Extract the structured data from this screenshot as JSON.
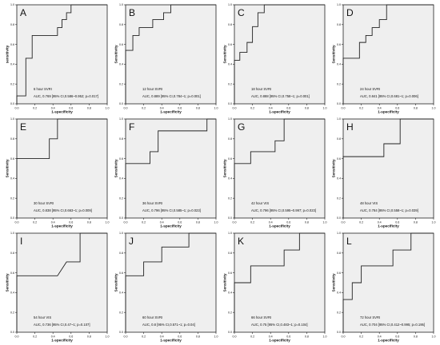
{
  "colors": {
    "plot_bg": "#efefef",
    "frame": "#222222",
    "curve": "#222222",
    "text": "#111111"
  },
  "common": {
    "xlabel": "1-specificity",
    "ylabel": "Sensitivity",
    "ticks": [
      "0.0",
      "0.2",
      "0.4",
      "0.6",
      "0.8",
      "1.0"
    ]
  },
  "chart_data": [
    {
      "type": "line",
      "letter": "A",
      "name": "6 hour SVRI",
      "auc": "AUC, 0.769 [95% CI,0.586~0.952; p=0.017]",
      "xlabel": "1-specificity",
      "ylabel": "sensitivity",
      "xlim": [
        0,
        1
      ],
      "ylim": [
        0,
        1
      ],
      "grid": false,
      "points": [
        [
          0,
          0
        ],
        [
          0,
          0.08
        ],
        [
          0.1,
          0.08
        ],
        [
          0.1,
          0.46
        ],
        [
          0.17,
          0.46
        ],
        [
          0.17,
          0.69
        ],
        [
          0.45,
          0.69
        ],
        [
          0.45,
          0.77
        ],
        [
          0.5,
          0.77
        ],
        [
          0.5,
          0.85
        ],
        [
          0.55,
          0.85
        ],
        [
          0.55,
          0.92
        ],
        [
          0.6,
          0.92
        ],
        [
          0.6,
          1.0
        ],
        [
          1,
          1
        ]
      ]
    },
    {
      "type": "line",
      "letter": "B",
      "name": "12 hour SVRI",
      "auc": "AUC, 0.889 [95% CI,0.784~1; p=0.001]",
      "xlabel": "1-specificity",
      "ylabel": "Sensitivity",
      "xlim": [
        0,
        1
      ],
      "ylim": [
        0,
        1
      ],
      "grid": false,
      "points": [
        [
          0,
          0
        ],
        [
          0,
          0.54
        ],
        [
          0.08,
          0.54
        ],
        [
          0.08,
          0.69
        ],
        [
          0.15,
          0.69
        ],
        [
          0.15,
          0.77
        ],
        [
          0.3,
          0.77
        ],
        [
          0.3,
          0.85
        ],
        [
          0.42,
          0.85
        ],
        [
          0.42,
          0.92
        ],
        [
          0.5,
          0.92
        ],
        [
          0.5,
          1.0
        ],
        [
          1,
          1
        ]
      ]
    },
    {
      "type": "line",
      "letter": "C",
      "name": "18 hour SVRI",
      "auc": "AUC, 0.888 [95% CI,0.758~1; p=0.001]",
      "xlabel": "1-specificity",
      "ylabel": "Sensitivity",
      "xlim": [
        0,
        1
      ],
      "ylim": [
        0,
        1
      ],
      "grid": false,
      "points": [
        [
          0,
          0
        ],
        [
          0,
          0.44
        ],
        [
          0.06,
          0.44
        ],
        [
          0.06,
          0.52
        ],
        [
          0.14,
          0.52
        ],
        [
          0.14,
          0.62
        ],
        [
          0.2,
          0.62
        ],
        [
          0.2,
          0.78
        ],
        [
          0.26,
          0.78
        ],
        [
          0.26,
          0.92
        ],
        [
          0.33,
          0.92
        ],
        [
          0.33,
          1.0
        ],
        [
          1,
          1
        ]
      ]
    },
    {
      "type": "line",
      "letter": "D",
      "name": "24 hour SVRI",
      "auc": "AUC, 0.841 [95% CI,0.681~1; p=0.006]",
      "xlabel": "1-specificity",
      "ylabel": "Sensitivity",
      "xlim": [
        0,
        1
      ],
      "ylim": [
        0,
        1
      ],
      "grid": false,
      "points": [
        [
          0,
          0
        ],
        [
          0,
          0.46
        ],
        [
          0.18,
          0.46
        ],
        [
          0.18,
          0.62
        ],
        [
          0.25,
          0.62
        ],
        [
          0.25,
          0.69
        ],
        [
          0.32,
          0.69
        ],
        [
          0.32,
          0.77
        ],
        [
          0.4,
          0.77
        ],
        [
          0.4,
          0.85
        ],
        [
          0.48,
          0.85
        ],
        [
          0.48,
          1.0
        ],
        [
          1,
          1
        ]
      ]
    },
    {
      "type": "line",
      "letter": "E",
      "name": "30 hour SVRI",
      "auc": "AUC, 0.838 [95% CI,0.663~1; p=0.009]",
      "xlabel": "1-specificity",
      "ylabel": "Sensitivity",
      "xlim": [
        0,
        1
      ],
      "ylim": [
        0,
        1
      ],
      "grid": false,
      "points": [
        [
          0,
          0
        ],
        [
          0,
          0.6
        ],
        [
          0.36,
          0.6
        ],
        [
          0.36,
          0.8
        ],
        [
          0.45,
          0.8
        ],
        [
          0.45,
          1.0
        ],
        [
          1,
          1
        ]
      ]
    },
    {
      "type": "line",
      "letter": "F",
      "name": "36 hour SVRI",
      "auc": "AUC, 0.796 [95% CI,0.585~1; p=0.023]",
      "xlabel": "1-specificity",
      "ylabel": "Sensitivity",
      "xlim": [
        0,
        1
      ],
      "ylim": [
        0,
        1
      ],
      "grid": false,
      "points": [
        [
          0,
          0
        ],
        [
          0,
          0.55
        ],
        [
          0.27,
          0.55
        ],
        [
          0.27,
          0.67
        ],
        [
          0.36,
          0.67
        ],
        [
          0.36,
          0.88
        ],
        [
          0.9,
          0.88
        ],
        [
          0.9,
          1.0
        ],
        [
          1,
          1
        ]
      ]
    },
    {
      "type": "line",
      "letter": "G",
      "name": "42 hour VIS",
      "auc": "AUC, 0.796 [95% CI,0.595~0.997; p=0.023]",
      "xlabel": "1-specificity",
      "ylabel": "Sensitivity",
      "xlim": [
        0,
        1
      ],
      "ylim": [
        0,
        1
      ],
      "grid": false,
      "points": [
        [
          0,
          0
        ],
        [
          0,
          0.55
        ],
        [
          0.18,
          0.55
        ],
        [
          0.18,
          0.67
        ],
        [
          0.45,
          0.67
        ],
        [
          0.45,
          0.78
        ],
        [
          0.55,
          0.78
        ],
        [
          0.55,
          1.0
        ],
        [
          1,
          1
        ]
      ]
    },
    {
      "type": "line",
      "letter": "H",
      "name": "48 hour VIS",
      "auc": "AUC, 0.784 [95% CI,0.558~1; p=0.039]",
      "xlabel": "1-specificity",
      "ylabel": "Sensitivity",
      "xlim": [
        0,
        1
      ],
      "ylim": [
        0,
        1
      ],
      "grid": false,
      "points": [
        [
          0,
          0
        ],
        [
          0,
          0.62
        ],
        [
          0.45,
          0.62
        ],
        [
          0.45,
          0.75
        ],
        [
          0.63,
          0.75
        ],
        [
          0.63,
          1.0
        ],
        [
          1,
          1
        ]
      ]
    },
    {
      "type": "line",
      "letter": "I",
      "name": "54 hour VIS",
      "auc": "AUC, 0.736 [95% CI,0.47~1; p=0.107]",
      "xlabel": "1-specificity",
      "ylabel": "Sensitivity",
      "xlim": [
        0,
        1
      ],
      "ylim": [
        0,
        1
      ],
      "grid": false,
      "points": [
        [
          0,
          0
        ],
        [
          0,
          0.57
        ],
        [
          0.45,
          0.57
        ],
        [
          0.55,
          0.71
        ],
        [
          0.7,
          0.71
        ],
        [
          0.7,
          1.0
        ],
        [
          1,
          1
        ]
      ]
    },
    {
      "type": "line",
      "letter": "J",
      "name": "60 hour SVRI",
      "auc": "AUC, 0.8 [95% CI,0.571~1; p=0.04]",
      "xlabel": "1-specificity",
      "ylabel": "Sensitivity",
      "xlim": [
        0,
        1
      ],
      "ylim": [
        0,
        1
      ],
      "grid": false,
      "points": [
        [
          0,
          0
        ],
        [
          0,
          0.57
        ],
        [
          0.2,
          0.57
        ],
        [
          0.2,
          0.71
        ],
        [
          0.4,
          0.71
        ],
        [
          0.4,
          0.86
        ],
        [
          0.7,
          0.86
        ],
        [
          0.7,
          1.0
        ],
        [
          1,
          1
        ]
      ]
    },
    {
      "type": "line",
      "letter": "K",
      "name": "66 hour SVRI",
      "auc": "AUC, 0.75 [95% CI,0.483~1; p=0.104]",
      "xlabel": "1-specificity",
      "ylabel": "Sensitivity",
      "xlim": [
        0,
        1
      ],
      "ylim": [
        0,
        1
      ],
      "grid": false,
      "points": [
        [
          0,
          0
        ],
        [
          0,
          0.5
        ],
        [
          0.18,
          0.5
        ],
        [
          0.18,
          0.67
        ],
        [
          0.55,
          0.67
        ],
        [
          0.55,
          0.83
        ],
        [
          0.72,
          0.83
        ],
        [
          0.72,
          1.0
        ],
        [
          1,
          1
        ]
      ]
    },
    {
      "type": "line",
      "letter": "L",
      "name": "72 hour SVRI",
      "auc": "AUC, 0.704 [95% CI,0.412~0.995; p=0.195]",
      "xlabel": "1-specificity",
      "ylabel": "Sensitivity",
      "xlim": [
        0,
        1
      ],
      "ylim": [
        0,
        1
      ],
      "grid": false,
      "points": [
        [
          0,
          0
        ],
        [
          0,
          0.33
        ],
        [
          0.1,
          0.33
        ],
        [
          0.1,
          0.5
        ],
        [
          0.2,
          0.5
        ],
        [
          0.2,
          0.67
        ],
        [
          0.55,
          0.67
        ],
        [
          0.55,
          0.83
        ],
        [
          0.75,
          0.83
        ],
        [
          0.75,
          1.0
        ],
        [
          1,
          1
        ]
      ]
    }
  ]
}
